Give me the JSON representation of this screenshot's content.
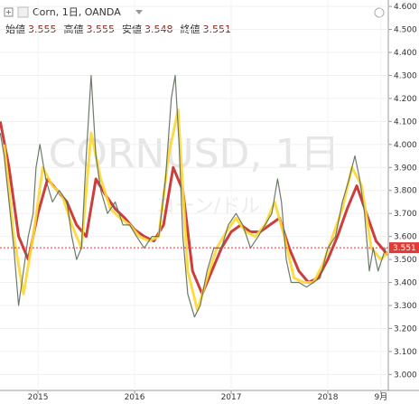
{
  "chart_data": {
    "type": "line",
    "header": {
      "symbol": "Corn, 1日, OANDA",
      "ohlc": [
        {
          "label": "始値",
          "value": "3.555"
        },
        {
          "label": "高値",
          "value": "3.555"
        },
        {
          "label": "安値",
          "value": "3.548"
        },
        {
          "label": "終値",
          "value": "3.551"
        }
      ]
    },
    "watermark": [
      "CORNUSD, 1日",
      "コーン/ドル"
    ],
    "xlim": [
      2014.607,
      2018.626
    ],
    "xticks": [
      2015,
      2016,
      2017,
      2018,
      {
        "value": 2018.55,
        "label": "9月"
      }
    ],
    "ylim": [
      2.97,
      4.62
    ],
    "yticks": [
      {
        "value": 3.0,
        "label": "3.000"
      },
      {
        "value": 3.1,
        "label": "3.100"
      },
      {
        "value": 3.2,
        "label": "3.200"
      },
      {
        "value": 3.3,
        "label": "3.300"
      },
      {
        "value": 3.4,
        "label": "3.400"
      },
      {
        "value": 3.5,
        "label": "3.500"
      },
      {
        "value": 3.6,
        "label": "3.600"
      },
      {
        "value": 3.7,
        "label": "3.700"
      },
      {
        "value": 3.8,
        "label": "3.800"
      },
      {
        "value": 3.9,
        "label": "3.900"
      },
      {
        "value": 4.0,
        "label": "4.000"
      },
      {
        "value": 4.1,
        "label": "4.100"
      },
      {
        "value": 4.2,
        "label": "4.200"
      },
      {
        "value": 4.3,
        "label": "4.300"
      },
      {
        "value": 4.4,
        "label": "4.400"
      },
      {
        "value": 4.5,
        "label": "4.500"
      },
      {
        "value": 4.6,
        "label": "4.600"
      }
    ],
    "grid": true,
    "last_price": {
      "value": 3.551,
      "label": "3.551",
      "color": "#e53935"
    },
    "series": [
      {
        "color": "#c62828",
        "x": [
          2014.61,
          2014.7,
          2014.8,
          2014.9,
          2015.0,
          2015.1,
          2015.2,
          2015.3,
          2015.4,
          2015.5,
          2015.6,
          2015.7,
          2015.8,
          2015.9,
          2016.0,
          2016.1,
          2016.2,
          2016.3,
          2016.4,
          2016.5,
          2016.6,
          2016.7,
          2016.8,
          2016.9,
          2017.0,
          2017.1,
          2017.2,
          2017.3,
          2017.4,
          2017.5,
          2017.6,
          2017.7,
          2017.8,
          2017.9,
          2018.0,
          2018.1,
          2018.2,
          2018.3,
          2018.4,
          2018.5,
          2018.62
        ],
        "values": [
          4.1,
          3.9,
          3.6,
          3.5,
          3.7,
          3.85,
          3.8,
          3.75,
          3.65,
          3.6,
          3.85,
          3.78,
          3.72,
          3.68,
          3.63,
          3.6,
          3.58,
          3.65,
          3.9,
          3.8,
          3.45,
          3.35,
          3.45,
          3.55,
          3.62,
          3.65,
          3.62,
          3.62,
          3.65,
          3.68,
          3.55,
          3.45,
          3.4,
          3.42,
          3.5,
          3.6,
          3.72,
          3.82,
          3.7,
          3.58,
          3.52
        ]
      },
      {
        "color": "#fdd835",
        "x": [
          2014.65,
          2014.75,
          2014.85,
          2014.95,
          2015.05,
          2015.15,
          2015.25,
          2015.35,
          2015.45,
          2015.55,
          2015.65,
          2015.75,
          2015.85,
          2015.95,
          2016.05,
          2016.15,
          2016.25,
          2016.35,
          2016.45,
          2016.55,
          2016.65,
          2016.75,
          2016.85,
          2016.95,
          2017.05,
          2017.15,
          2017.25,
          2017.35,
          2017.45,
          2017.55,
          2017.65,
          2017.75,
          2017.85,
          2017.95,
          2018.05,
          2018.15,
          2018.25,
          2018.35,
          2018.45,
          2018.55,
          2018.62
        ],
        "values": [
          4.0,
          3.6,
          3.35,
          3.6,
          3.9,
          3.82,
          3.78,
          3.65,
          3.55,
          4.05,
          3.85,
          3.72,
          3.68,
          3.65,
          3.6,
          3.58,
          3.6,
          3.95,
          4.15,
          3.45,
          3.28,
          3.42,
          3.55,
          3.62,
          3.68,
          3.62,
          3.6,
          3.65,
          3.75,
          3.6,
          3.42,
          3.4,
          3.4,
          3.48,
          3.6,
          3.72,
          3.9,
          3.82,
          3.55,
          3.5,
          3.53
        ]
      },
      {
        "color": "#5d6b5a",
        "x": [
          2014.61,
          2014.65,
          2014.7,
          2014.75,
          2014.8,
          2014.85,
          2014.9,
          2014.95,
          2014.98,
          2015.02,
          2015.08,
          2015.15,
          2015.22,
          2015.3,
          2015.35,
          2015.4,
          2015.45,
          2015.5,
          2015.55,
          2015.6,
          2015.65,
          2015.72,
          2015.8,
          2015.88,
          2015.95,
          2016.02,
          2016.1,
          2016.18,
          2016.25,
          2016.32,
          2016.38,
          2016.42,
          2016.46,
          2016.5,
          2016.55,
          2016.62,
          2016.68,
          2016.75,
          2016.82,
          2016.9,
          2016.97,
          2017.05,
          2017.12,
          2017.2,
          2017.28,
          2017.35,
          2017.42,
          2017.48,
          2017.52,
          2017.57,
          2017.62,
          2017.7,
          2017.78,
          2017.85,
          2017.92,
          2018.0,
          2018.08,
          2018.15,
          2018.22,
          2018.28,
          2018.33,
          2018.38,
          2018.43,
          2018.47,
          2018.52,
          2018.56,
          2018.6
        ],
        "values": [
          4.05,
          3.95,
          3.75,
          3.55,
          3.3,
          3.45,
          3.6,
          3.7,
          3.9,
          4.0,
          3.85,
          3.75,
          3.8,
          3.75,
          3.6,
          3.5,
          3.55,
          3.95,
          4.3,
          3.95,
          3.8,
          3.7,
          3.75,
          3.65,
          3.65,
          3.6,
          3.55,
          3.6,
          3.6,
          3.85,
          4.2,
          4.3,
          4.0,
          3.6,
          3.35,
          3.25,
          3.3,
          3.45,
          3.55,
          3.55,
          3.65,
          3.7,
          3.65,
          3.55,
          3.6,
          3.65,
          3.7,
          3.85,
          3.75,
          3.5,
          3.4,
          3.4,
          3.38,
          3.4,
          3.42,
          3.55,
          3.6,
          3.75,
          3.85,
          3.95,
          3.85,
          3.7,
          3.45,
          3.55,
          3.45,
          3.5,
          3.551
        ]
      }
    ]
  }
}
